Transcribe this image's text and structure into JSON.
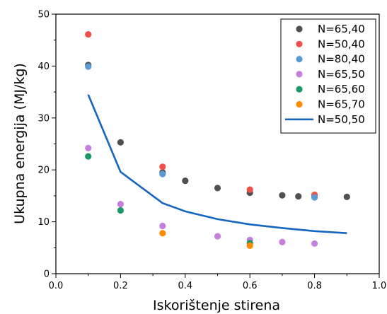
{
  "chart_data": {
    "type": "scatter",
    "title": "",
    "xlabel": "Iskorištenje stirena",
    "ylabel": "Ukupna energija (MJ/kg)",
    "xlim": [
      0.0,
      1.0
    ],
    "ylim": [
      0,
      50
    ],
    "x_ticks": [
      "0.0",
      "0.2",
      "0.4",
      "0.6",
      "0.8",
      "1.0"
    ],
    "y_ticks": [
      "0",
      "10",
      "20",
      "30",
      "40",
      "50"
    ],
    "grid": false,
    "legend_position": "top-right",
    "series": [
      {
        "name": "N=65,40",
        "kind": "scatter",
        "color": "#505050",
        "points": [
          [
            0.1,
            40.2
          ],
          [
            0.2,
            25.3
          ],
          [
            0.33,
            19.5
          ],
          [
            0.4,
            17.9
          ],
          [
            0.5,
            16.5
          ],
          [
            0.6,
            15.6
          ],
          [
            0.7,
            15.1
          ],
          [
            0.75,
            14.9
          ],
          [
            0.8,
            15.0
          ],
          [
            0.9,
            14.8
          ]
        ]
      },
      {
        "name": "N=50,40",
        "kind": "scatter",
        "color": "#f0504a",
        "points": [
          [
            0.1,
            46.1
          ],
          [
            0.33,
            20.6
          ],
          [
            0.6,
            16.2
          ],
          [
            0.8,
            15.2
          ]
        ]
      },
      {
        "name": "N=80,40",
        "kind": "scatter",
        "color": "#5b9bd5",
        "points": [
          [
            0.1,
            39.9
          ],
          [
            0.33,
            19.2
          ],
          [
            0.8,
            14.7
          ]
        ]
      },
      {
        "name": "N=65,50",
        "kind": "scatter",
        "color": "#c57fdc",
        "points": [
          [
            0.1,
            24.2
          ],
          [
            0.2,
            13.4
          ],
          [
            0.33,
            9.2
          ],
          [
            0.5,
            7.2
          ],
          [
            0.6,
            6.5
          ],
          [
            0.7,
            6.1
          ],
          [
            0.8,
            5.8
          ]
        ]
      },
      {
        "name": "N=65,60",
        "kind": "scatter",
        "color": "#1a9966",
        "points": [
          [
            0.1,
            22.6
          ],
          [
            0.2,
            12.2
          ],
          [
            0.6,
            5.9
          ]
        ]
      },
      {
        "name": "N=65,70",
        "kind": "scatter",
        "color": "#ff8c00",
        "points": [
          [
            0.33,
            7.8
          ],
          [
            0.6,
            5.4
          ]
        ]
      },
      {
        "name": "N=50,50",
        "kind": "line",
        "color": "#1565c0",
        "points": [
          [
            0.1,
            34.5
          ],
          [
            0.2,
            19.6
          ],
          [
            0.33,
            13.6
          ],
          [
            0.4,
            12.0
          ],
          [
            0.5,
            10.5
          ],
          [
            0.6,
            9.5
          ],
          [
            0.7,
            8.8
          ],
          [
            0.8,
            8.2
          ],
          [
            0.9,
            7.8
          ]
        ]
      }
    ]
  }
}
